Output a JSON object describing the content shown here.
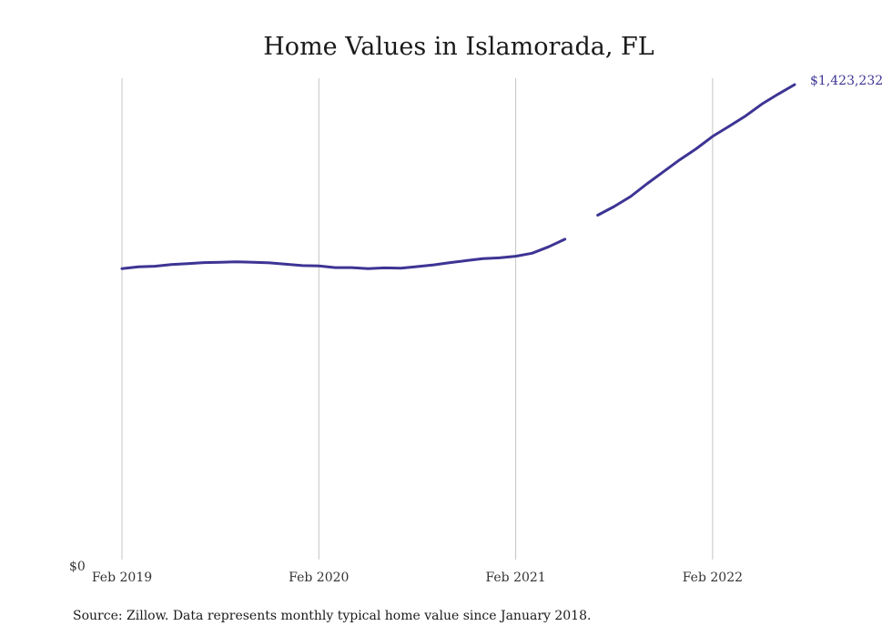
{
  "chart_data": {
    "type": "line",
    "title": "Home Values in Islamorada, FL",
    "xlabel": "",
    "ylabel": "",
    "y_min_label": "$0",
    "ylim": [
      0,
      1423232
    ],
    "xlim": [
      "2019-02",
      "2022-07"
    ],
    "x_ticks": [
      {
        "date": "2019-02",
        "label": "Feb 2019"
      },
      {
        "date": "2020-02",
        "label": "Feb 2020"
      },
      {
        "date": "2021-02",
        "label": "Feb 2021"
      },
      {
        "date": "2022-02",
        "label": "Feb 2022"
      }
    ],
    "grid": "vertical",
    "line_color": "#3d3494",
    "end_label": "$1,423,232",
    "segments": [
      {
        "x": [
          "2019-02",
          "2019-03",
          "2019-04",
          "2019-05",
          "2019-06",
          "2019-07",
          "2019-08",
          "2019-09",
          "2019-10",
          "2019-11",
          "2019-12",
          "2020-01",
          "2020-02",
          "2020-03",
          "2020-04",
          "2020-05",
          "2020-06",
          "2020-07",
          "2020-08",
          "2020-09",
          "2020-10",
          "2020-11",
          "2020-12",
          "2021-01",
          "2021-02",
          "2021-03",
          "2021-04",
          "2021-05"
        ],
        "y": [
          872000,
          877000,
          879000,
          884000,
          887000,
          890000,
          891000,
          892000,
          891000,
          889000,
          885000,
          881000,
          880000,
          875000,
          875000,
          872000,
          874000,
          873000,
          878000,
          883000,
          890000,
          896000,
          902000,
          904000,
          909000,
          918000,
          937000,
          960000
        ]
      },
      {
        "x": [
          "2021-07",
          "2021-08",
          "2021-09",
          "2021-10",
          "2021-11",
          "2021-12",
          "2022-01",
          "2022-02",
          "2022-03",
          "2022-04",
          "2022-05",
          "2022-06",
          "2022-07"
        ],
        "y": [
          1032000,
          1058000,
          1088000,
          1126000,
          1162000,
          1198000,
          1231000,
          1268000,
          1298000,
          1329000,
          1365000,
          1395000,
          1423232
        ]
      }
    ]
  },
  "footer": {
    "source": "Source: Zillow. Data represents monthly typical home value since January 2018."
  }
}
